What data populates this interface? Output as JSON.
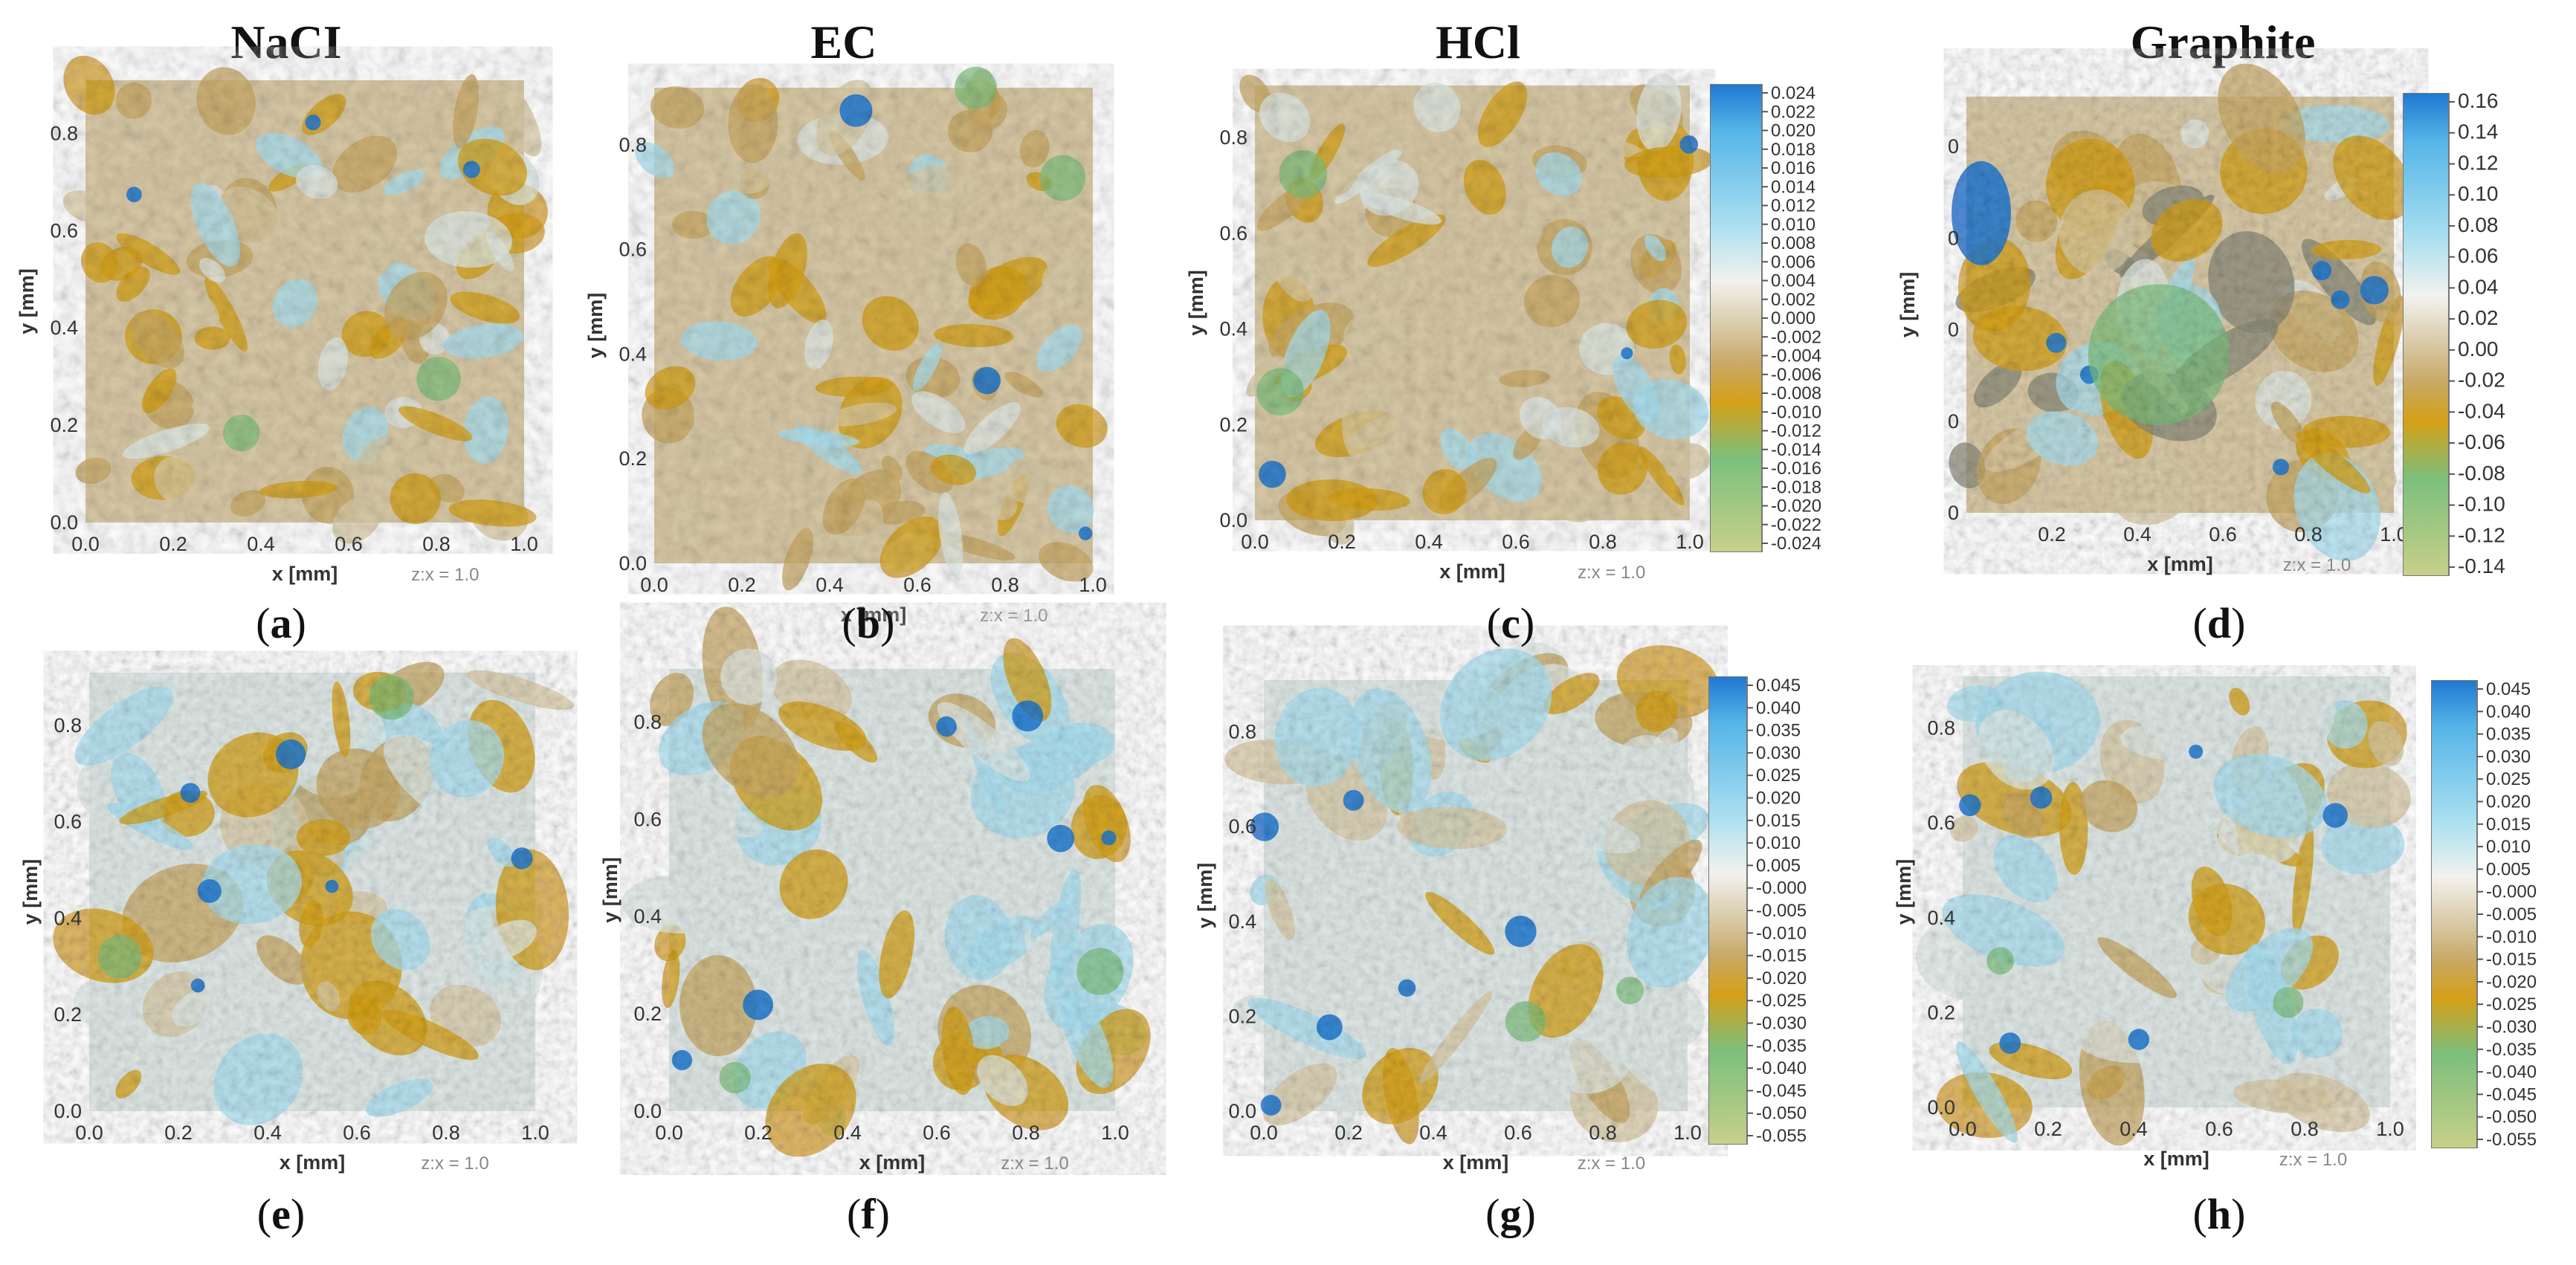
{
  "columns": [
    "NaCI",
    "EC",
    "HCl",
    "Graphite"
  ],
  "axis": {
    "xlabel": "x [mm]",
    "ylabel": "y [mm]",
    "zscale": "z:x = 1.0",
    "xticks": [
      "0.0",
      "0.2",
      "0.4",
      "0.6",
      "0.8",
      "1.0"
    ],
    "yticks": [
      "0.0",
      "0.2",
      "0.4",
      "0.6",
      "0.8"
    ],
    "yticks_d": [
      "0",
      "0",
      "0",
      "0",
      "0"
    ],
    "xticks_d": [
      "0.2",
      "0.4",
      "0.6",
      "0.8",
      "1.0"
    ]
  },
  "panels": [
    {
      "id": "a",
      "label": "a",
      "pal": "fine"
    },
    {
      "id": "b",
      "label": "b",
      "pal": "fine"
    },
    {
      "id": "c",
      "label": "c",
      "pal": "fine"
    },
    {
      "id": "d",
      "label": "d",
      "pal": "graphite"
    },
    {
      "id": "e",
      "label": "e",
      "pal": "rough"
    },
    {
      "id": "f",
      "label": "f",
      "pal": "rough"
    },
    {
      "id": "g",
      "label": "g",
      "pal": "rough"
    },
    {
      "id": "h",
      "label": "h",
      "pal": "rough"
    }
  ],
  "colorbars": {
    "c": [
      "0.024",
      "0.022",
      "0.020",
      "0.018",
      "0.016",
      "0.014",
      "0.012",
      "0.010",
      "0.008",
      "0.006",
      "0.004",
      "0.002",
      "0.000",
      "-0.002",
      "-0.004",
      "-0.006",
      "-0.008",
      "-0.010",
      "-0.012",
      "-0.014",
      "-0.016",
      "-0.018",
      "-0.020",
      "-0.022",
      "-0.024"
    ],
    "d": [
      "0.16",
      "0.14",
      "0.12",
      "0.10",
      "0.08",
      "0.06",
      "0.04",
      "0.02",
      "0.00",
      "-0.02",
      "-0.04",
      "-0.06",
      "-0.08",
      "-0.10",
      "-0.12",
      "-0.14"
    ],
    "g": [
      "0.045",
      "0.040",
      "0.035",
      "0.030",
      "0.025",
      "0.020",
      "0.015",
      "0.010",
      "0.005",
      "-0.000",
      "-0.005",
      "-0.010",
      "-0.015",
      "-0.020",
      "-0.025",
      "-0.030",
      "-0.035",
      "-0.040",
      "-0.045",
      "-0.050",
      "-0.055"
    ],
    "h": [
      "0.045",
      "0.040",
      "0.035",
      "0.030",
      "0.025",
      "0.020",
      "0.015",
      "0.010",
      "0.005",
      "-0.000",
      "-0.005",
      "-0.010",
      "-0.015",
      "-0.020",
      "-0.025",
      "-0.030",
      "-0.035",
      "-0.040",
      "-0.045",
      "-0.050",
      "-0.055"
    ]
  },
  "colors": {
    "blue": "#1f78d1",
    "lightblue": "#a9dff0",
    "pale": "#dfe8e6",
    "beige": "#d8c9a6",
    "tan": "#c8a864",
    "gold": "#d4a017",
    "green": "#7cbf7c",
    "olive": "#c8d08a"
  }
}
